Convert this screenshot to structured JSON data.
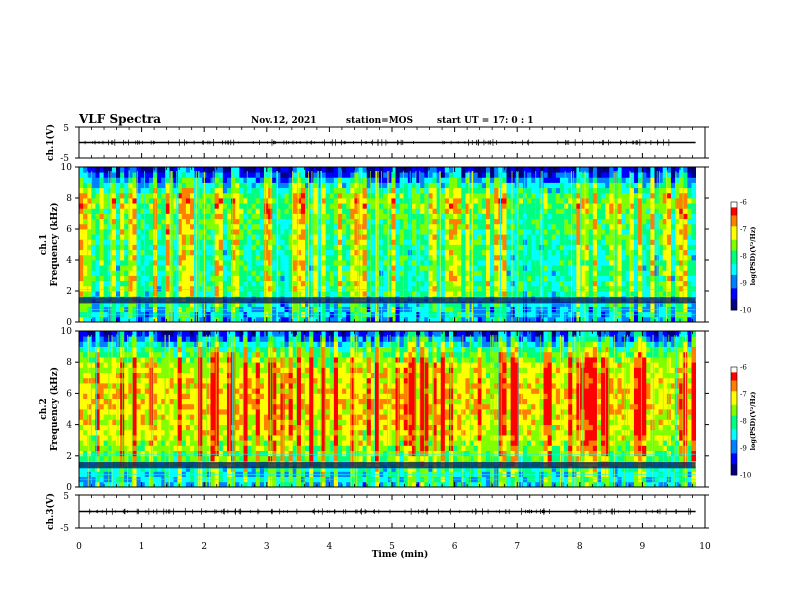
{
  "header": {
    "title": "VLF Spectra",
    "date": "Nov.12, 2021",
    "station": "station=MOS",
    "start": "start UT = 17: 0 : 1"
  },
  "colors": {
    "scale": [
      "#000080",
      "#0000ff",
      "#0080ff",
      "#00ffff",
      "#00ff80",
      "#80ff00",
      "#ffff00",
      "#ff8000",
      "#ff0000",
      "#ffffff"
    ],
    "waveform": "#000000"
  },
  "chart_data": [
    {
      "type": "line",
      "name": "ch1-waveform",
      "ylabel": "ch.1(V)",
      "ylim": [
        -5,
        5
      ],
      "yticks": [
        "5",
        "-5"
      ],
      "xlim": [
        0,
        10
      ],
      "description_values": {
        "baseline_v": 0
      }
    },
    {
      "type": "heatmap",
      "name": "ch1-spectrogram",
      "ylabel": "ch.1\nFrequency (kHz)",
      "ylabel_lines": [
        "ch.1",
        "Frequency (kHz)"
      ],
      "ylim": [
        0,
        10
      ],
      "yticks": [
        "0",
        "2",
        "4",
        "6",
        "8",
        "10"
      ],
      "xlim": [
        0,
        10
      ],
      "data_extent_x": [
        0,
        9.85
      ],
      "colorbar": {
        "label": "log(PSD)(V²/Hz)",
        "range": [
          -10,
          -6
        ],
        "ticks": [
          "-6",
          "-7",
          "-8",
          "-9",
          "-10"
        ]
      },
      "freq_profile": [
        {
          "f": 0.2,
          "level": -8.8
        },
        {
          "f": 1.0,
          "level": -8.6
        },
        {
          "f": 2.0,
          "level": -8.0
        },
        {
          "f": 4.0,
          "level": -8.1
        },
        {
          "f": 6.0,
          "level": -7.9
        },
        {
          "f": 8.0,
          "level": -7.6
        },
        {
          "f": 9.0,
          "level": -8.6
        },
        {
          "f": 10.0,
          "level": -9.8
        }
      ]
    },
    {
      "type": "heatmap",
      "name": "ch2-spectrogram",
      "ylabel": "ch.2\nFrequency (kHz)",
      "ylabel_lines": [
        "ch.2",
        "Frequency (kHz)"
      ],
      "ylim": [
        0,
        10
      ],
      "yticks": [
        "0",
        "2",
        "4",
        "6",
        "8",
        "10"
      ],
      "xlim": [
        0,
        10
      ],
      "data_extent_x": [
        0,
        9.85
      ],
      "colorbar": {
        "label": "log(PSD)(V²/Hz)",
        "range": [
          -10,
          -6
        ],
        "ticks": [
          "-6",
          "-7",
          "-8",
          "-9",
          "-10"
        ]
      },
      "freq_profile": [
        {
          "f": 0.2,
          "level": -8.5
        },
        {
          "f": 1.0,
          "level": -8.4
        },
        {
          "f": 2.0,
          "level": -7.6
        },
        {
          "f": 4.0,
          "level": -7.1
        },
        {
          "f": 6.0,
          "level": -6.9
        },
        {
          "f": 8.0,
          "level": -7.3
        },
        {
          "f": 9.0,
          "level": -8.2
        },
        {
          "f": 10.0,
          "level": -9.6
        }
      ]
    },
    {
      "type": "line",
      "name": "ch3-waveform",
      "ylabel": "ch.3(V)",
      "ylim": [
        -5,
        5
      ],
      "yticks": [
        "5",
        "-5"
      ],
      "xlim": [
        0,
        10
      ],
      "description_values": {
        "baseline_v": 0
      }
    }
  ],
  "xaxis": {
    "label": "Time (min)",
    "ticks": [
      "0",
      "1",
      "2",
      "3",
      "4",
      "5",
      "6",
      "7",
      "8",
      "9",
      "10"
    ]
  }
}
